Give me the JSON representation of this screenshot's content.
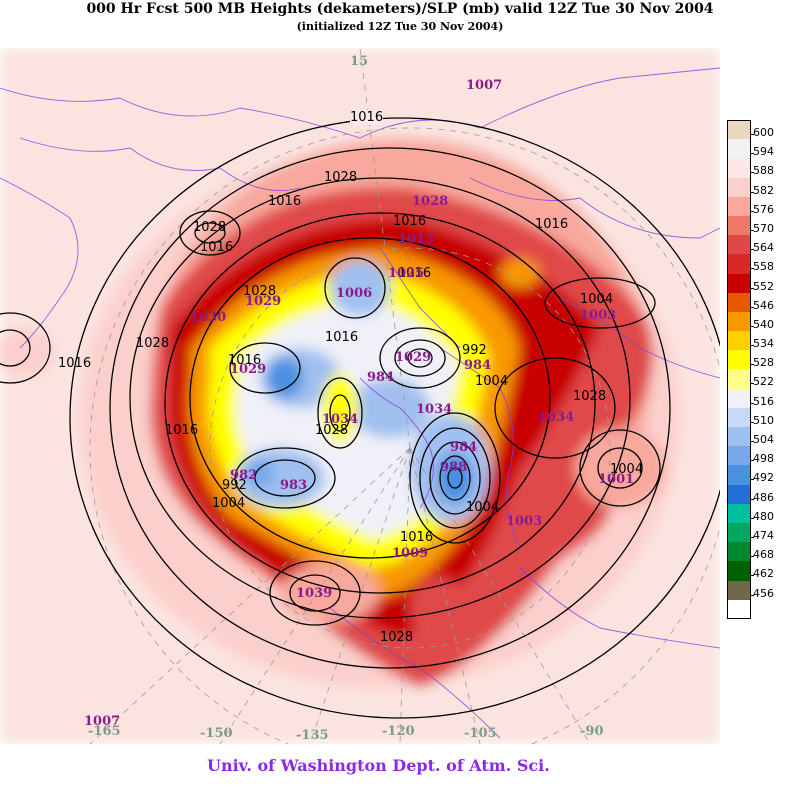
{
  "title": "000 Hr Fcst 500 MB Heights (dekameters)/SLP (mb) valid 12Z Tue 30 Nov 2004",
  "subtitle": "(initialized 12Z  Tue 30 Nov 2004)",
  "credit": "Univ. of Washington Dept. of Atm. Sci.",
  "legend": [
    {
      "label": "600",
      "color": "#e8d8c0"
    },
    {
      "label": "594",
      "color": "#f2f2f2"
    },
    {
      "label": "588",
      "color": "#fde8e8"
    },
    {
      "label": "582",
      "color": "#fbd0cc"
    },
    {
      "label": "576",
      "color": "#f8a89c"
    },
    {
      "label": "570",
      "color": "#f07868"
    },
    {
      "label": "564",
      "color": "#e04848"
    },
    {
      "label": "558",
      "color": "#d82828"
    },
    {
      "label": "552",
      "color": "#c80000"
    },
    {
      "label": "546",
      "color": "#e85800"
    },
    {
      "label": "540",
      "color": "#f89800"
    },
    {
      "label": "534",
      "color": "#ffd000"
    },
    {
      "label": "528",
      "color": "#ffff00"
    },
    {
      "label": "522",
      "color": "#ffff88"
    },
    {
      "label": "516",
      "color": "#f0f0f8"
    },
    {
      "label": "510",
      "color": "#c8d8f8"
    },
    {
      "label": "504",
      "color": "#a0c0f0"
    },
    {
      "label": "498",
      "color": "#78a8e8"
    },
    {
      "label": "492",
      "color": "#4890e0"
    },
    {
      "label": "486",
      "color": "#2070d8"
    },
    {
      "label": "480",
      "color": "#00c0a0"
    },
    {
      "label": "474",
      "color": "#00a860"
    },
    {
      "label": "468",
      "color": "#008830"
    },
    {
      "label": "462",
      "color": "#006000"
    },
    {
      "label": "456",
      "color": "#706848"
    },
    {
      "label": "",
      "color": "#ffffff"
    }
  ],
  "longitudes": [
    "15",
    "-165",
    "-150",
    "-135",
    "-120",
    "-105",
    "-90"
  ],
  "slp_contours": [
    "1016",
    "1016",
    "1028",
    "1016",
    "1028",
    "1016",
    "1016",
    "1016",
    "1028",
    "1016",
    "1028",
    "1016",
    "1004",
    "1016",
    "1004",
    "1028",
    "1028",
    "1004",
    "1016",
    "1004",
    "992",
    "992",
    "1004",
    "1016",
    "1028"
  ],
  "centers": [
    "1007",
    "1028",
    "1013",
    "1025",
    "1006",
    "1029",
    "1029",
    "1030",
    "1029",
    "984",
    "984",
    "1034",
    "1034",
    "984",
    "988",
    "1034",
    "1001",
    "982",
    "983",
    "1009",
    "1039",
    "1007",
    "1003",
    "1003"
  ],
  "colors": {
    "credit": "#8a2be2",
    "centers": "#8b1a8b",
    "coast": "#7b3fe4"
  }
}
